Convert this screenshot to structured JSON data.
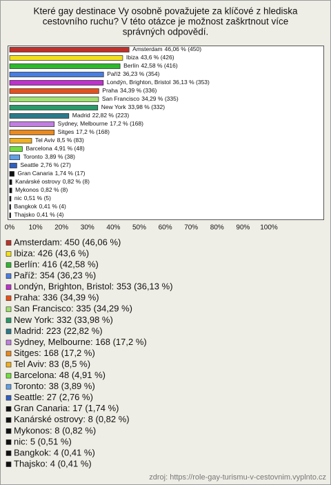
{
  "chart_data": {
    "type": "barh",
    "title": [
      "Které gay destinace Vy osobně považujete za klíčové z hlediska",
      "cestovního ruchu? V této otázce je možnost zaškrtnout více",
      "správných odpovědí."
    ],
    "categories": [
      "Amsterdam",
      "Ibiza",
      "Berlín",
      "Paříž",
      "Londýn, Brighton, Bristol",
      "Praha",
      "San Francisco",
      "New York",
      "Madrid",
      "Sydney, Melbourne",
      "Sitges",
      "Tel Aviv",
      "Barcelona",
      "Toronto",
      "Seattle",
      "Gran Canaria",
      "Kanárské ostrovy",
      "Mykonos",
      "nic",
      "Bangkok",
      "Thajsko"
    ],
    "values": [
      46.06,
      43.6,
      42.58,
      36.23,
      36.13,
      34.39,
      34.29,
      33.98,
      22.82,
      17.2,
      17.2,
      8.5,
      4.91,
      3.89,
      2.76,
      1.74,
      0.82,
      0.82,
      0.51,
      0.41,
      0.41
    ],
    "value_labels": [
      "46,06 % (450)",
      "43,6 % (426)",
      "42,58 % (416)",
      "36,23 % (354)",
      "36,13 % (353)",
      "34,39 % (336)",
      "34,29 % (335)",
      "33,98 % (332)",
      "22,82 % (223)",
      "17,2 % (168)",
      "17,2 % (168)",
      "8,5 % (83)",
      "4,91 % (48)",
      "3,89 % (38)",
      "2,76 % (27)",
      "1,74 % (17)",
      "0,82 % (8)",
      "0,82 % (8)",
      "0,51 % (5)",
      "0,41 % (4)",
      "0,41 % (4)"
    ],
    "colors": [
      "#c0302a",
      "#f2e01e",
      "#2db82d",
      "#4a7de0",
      "#c030d0",
      "#e8501a",
      "#a0e070",
      "#2a9a6a",
      "#2a7a8a",
      "#c080e0",
      "#e88a20",
      "#f0b020",
      "#70e040",
      "#60a0e8",
      "#3060c0",
      "#111111",
      "#111111",
      "#111111",
      "#111111",
      "#111111",
      "#111111"
    ],
    "legend": [
      "Amsterdam: 450 (46,06 %)",
      "Ibiza: 426 (43,6 %)",
      "Berlín: 416 (42,58 %)",
      "Paříž: 354 (36,23 %)",
      "Londýn, Brighton, Bristol: 353 (36,13 %)",
      "Praha: 336 (34,39 %)",
      "San Francisco: 335 (34,29 %)",
      "New York: 332 (33,98 %)",
      "Madrid: 223 (22,82 %)",
      "Sydney, Melbourne: 168 (17,2 %)",
      "Sitges: 168 (17,2 %)",
      "Tel Aviv: 83 (8,5 %)",
      "Barcelona: 48 (4,91 %)",
      "Toronto: 38 (3,89 %)",
      "Seattle: 27 (2,76 %)",
      "Gran Canaria: 17 (1,74 %)",
      "Kanárské ostrovy: 8 (0,82 %)",
      "Mykonos: 8 (0,82 %)",
      "nic: 5 (0,51 %)",
      "Bangkok: 4 (0,41 %)",
      "Thajsko: 4 (0,41 %)"
    ],
    "xlim": [
      0,
      100
    ],
    "xticks": [
      {
        "value": 0,
        "label": "0%"
      },
      {
        "value": 10,
        "label": "10%"
      },
      {
        "value": 20,
        "label": "20%"
      },
      {
        "value": 30,
        "label": "30%"
      },
      {
        "value": 40,
        "label": "40%"
      },
      {
        "value": 50,
        "label": "50%"
      },
      {
        "value": 60,
        "label": "60%"
      },
      {
        "value": 70,
        "label": "70%"
      },
      {
        "value": 80,
        "label": "80%"
      },
      {
        "value": 90,
        "label": "90%"
      },
      {
        "value": 100,
        "label": "100%"
      }
    ],
    "grid": false,
    "source": "zdroj: https://role-gay-turismu-v-cestovnim.vyplnto.cz"
  }
}
